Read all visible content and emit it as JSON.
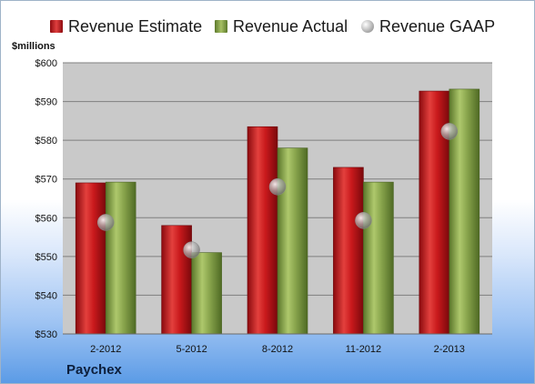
{
  "legend": {
    "estimate": "Revenue Estimate",
    "actual": "Revenue Actual",
    "gaap": "Revenue GAAP"
  },
  "unit_label": "$millions",
  "company": "Paychex",
  "colors": {
    "estimate": "#c0161b",
    "actual": "#84a04a",
    "gaap": "#a9a9a9",
    "plot_bg": "#c9c9c9",
    "grid": "#7f7f7f"
  },
  "chart_data": {
    "type": "bar",
    "categories": [
      "2-2012",
      "5-2012",
      "8-2012",
      "11-2012",
      "2-2013"
    ],
    "series": [
      {
        "name": "Revenue Estimate",
        "values": [
          569,
          558,
          583.5,
          573,
          592.7
        ]
      },
      {
        "name": "Revenue Actual",
        "values": [
          569.2,
          551,
          578,
          569.2,
          593.2
        ]
      },
      {
        "name": "Revenue GAAP",
        "values": [
          558.8,
          551.7,
          568,
          559.3,
          582.3
        ]
      }
    ],
    "ylim": [
      530,
      600
    ],
    "yticks": [
      530,
      540,
      550,
      560,
      570,
      580,
      590,
      600
    ],
    "ytick_labels": [
      "$530",
      "$540",
      "$550",
      "$560",
      "$570",
      "$580",
      "$590",
      "$600"
    ],
    "grid": true,
    "legend_position": "top"
  }
}
